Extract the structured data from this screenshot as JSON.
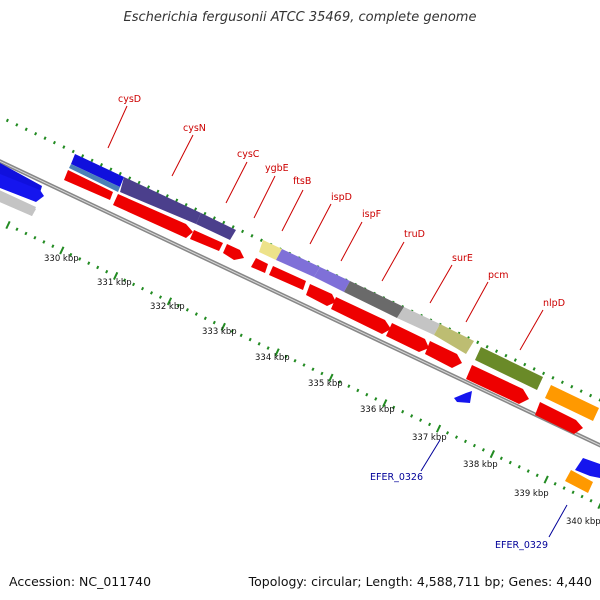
{
  "title": "Escherichia fergusonii ATCC 35469, complete genome",
  "footer": {
    "accession": "Accession: NC_011740",
    "topology": "Topology: circular; Length: 4,588,711 bp; Genes: 4,440"
  },
  "scale_labels": [
    "330 kbp",
    "331 kbp",
    "332 kbp",
    "333 kbp",
    "334 kbp",
    "335 kbp",
    "336 kbp",
    "337 kbp",
    "338 kbp",
    "339 kbp",
    "340 kbp"
  ],
  "gene_labels": [
    {
      "name": "cysD",
      "color": "#cc0000"
    },
    {
      "name": "cysN",
      "color": "#cc0000"
    },
    {
      "name": "cysC",
      "color": "#cc0000"
    },
    {
      "name": "ygbE",
      "color": "#cc0000"
    },
    {
      "name": "ftsB",
      "color": "#cc0000"
    },
    {
      "name": "ispD",
      "color": "#cc0000"
    },
    {
      "name": "ispF",
      "color": "#cc0000"
    },
    {
      "name": "truD",
      "color": "#cc0000"
    },
    {
      "name": "surE",
      "color": "#cc0000"
    },
    {
      "name": "pcm",
      "color": "#cc0000"
    },
    {
      "name": "nlpD",
      "color": "#cc0000"
    },
    {
      "name": "EFER_0326",
      "color": "#000099"
    },
    {
      "name": "EFER_0329",
      "color": "#000099"
    }
  ],
  "colors": {
    "forward_cds": "#ee0000",
    "reverse_cds": "#1515ee",
    "backbone": "#8c8c8c",
    "ticks": "#228b22",
    "cog_colors": [
      "#1010dd",
      "#4a80b8",
      "#4b3f8c",
      "#c4c4c4",
      "#ede28a",
      "#7f70d8",
      "#6a6a6a",
      "#bdbd72",
      "#6a8a28",
      "#ff9900"
    ]
  }
}
